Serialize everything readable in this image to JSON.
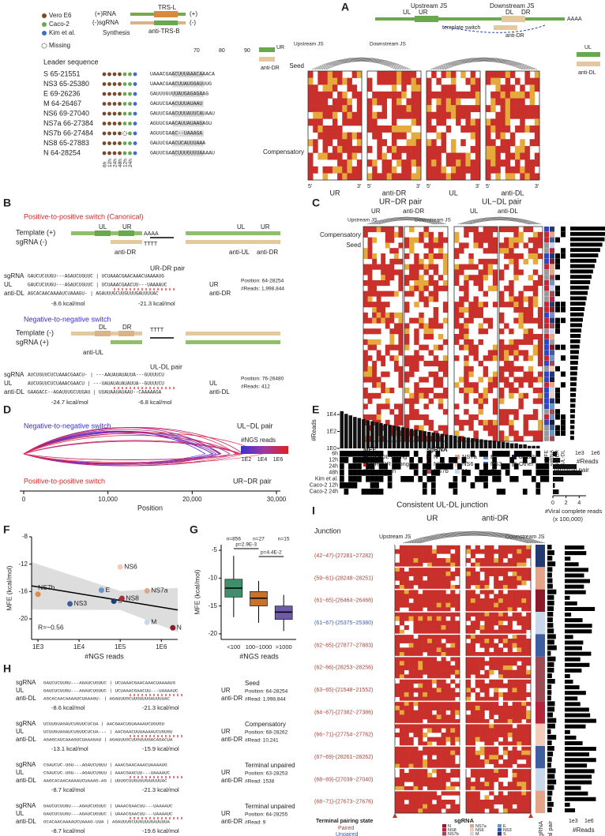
{
  "A": {
    "label": "A",
    "legend": [
      "Vero E6",
      "Caco-2",
      "Kim et al."
    ],
    "missing": "Missing",
    "leader": "Leader sequence",
    "plus_rna": "(+)RNA",
    "minus_sgrna": "(-)sgRNA",
    "synthesis": "Synthesis",
    "trs_l": "TRS-L",
    "anti_trs_b": "anti-TRS-B",
    "plus": "(+)",
    "minus": "(-)",
    "upstream_js": "Upstream JS",
    "downstream_js": "Downstream JS",
    "ul": "UL",
    "ur": "UR",
    "dl": "DL",
    "dr": "DR",
    "aaaa": "AAAA",
    "template_switch": "template switch",
    "anti_dr": "anti-DR",
    "anti_dl": "anti-DL",
    "positions": [
      "70",
      "80",
      "90"
    ],
    "rows": [
      {
        "name": "S 65-21551",
        "seq": "UAAACGAACUUUAAACAAACA"
      },
      {
        "name": "NS3 65-25380",
        "seq": "UAAACGAACUUAUGGAUUUG"
      },
      {
        "name": "E 69-26236",
        "seq": "GAUUUGUUUAUGAGAGAAG"
      },
      {
        "name": "M 64-26467",
        "seq": "GAUUCGAACUUUAUAAU"
      },
      {
        "name": "NS6 69-27040",
        "seq": "GAUUCGAACUUUAUUCAUAAU"
      },
      {
        "name": "NS7a 66-27384",
        "seq": "AGUUCGAACAUUAUAAGAGU"
      },
      {
        "name": "NS7b 66-27484",
        "seq": "AGUUCGAAC--UAAAGA"
      },
      {
        "name": "NS8 65-27883",
        "seq": "GAUUCGAACUCAUUUAAA"
      },
      {
        "name": "N 64-28254",
        "seq": "GAUUCGAACUUUGUUUAAAAU"
      }
    ],
    "timepoints": [
      "6h",
      "12h",
      "24h",
      "48h",
      "12h",
      "24h"
    ],
    "seed": "Seed",
    "compensatory": "Compensatory",
    "heatmaps": [
      "UR",
      "anti-DR",
      "UL",
      "anti-DL"
    ],
    "five": "5'",
    "three": "3'"
  },
  "B": {
    "label": "B",
    "pos_title": "Positive-to-positive switch (Canonical)",
    "template_plus": "Template (+)",
    "sgrna_minus": "sgRNA (-)",
    "neg_title": "Negative-to-negative switch",
    "template_minus": "Template (-)",
    "sgrna_plus": "sgRNA (+)",
    "ul": "UL",
    "ur": "UR",
    "dl": "DL",
    "dr": "DR",
    "anti_dr": "anti-DR",
    "anti_ul": "anti-UL",
    "aaaa": "AAAA",
    "tttt": "TTTT",
    "pair1": {
      "title": "UR-DR pair",
      "names": [
        "sgRNA",
        "UL",
        "anti-DL"
      ],
      "seqs": [
        "GAUCUCUUGU---AGAUCUGUUC | UCUAAACGAACAAACUAAAAUG",
        "GAUCUCUUGU---AGAUCUGUUC | UCUAAACGAACUU---UAAAAUC",
        "AGCACAACAAAAUCUAAAGU- | AGAUUUGCUUGUUUGAUUUUAC"
      ],
      "right": [
        "UR",
        "anti-DR"
      ],
      "mfe": [
        "-8.6 kcal/mol",
        "-21.3 kcal/mol"
      ],
      "position": "Position: 64-28254",
      "reads": "#Reads: 1,998,844"
    },
    "pair2": {
      "title": "UL-DL pair",
      "names": [
        "sgRNA",
        "UL",
        "anti-DL"
      ],
      "seqs": [
        "AUCUGUUCUCUAAACGAACU- | ---AAUAUAUAUUA---GUUUUCU",
        "AUCUGUUCUCUAAACGAACU | ---UAUAUAUAUAUUA--GUUUUCU",
        "GAAGACC--AGAUUUGCUUGAU | UUAUAAUAUAAU--CAAAAAGA"
      ],
      "right": [
        "UL",
        "anti-DL"
      ],
      "mfe": [
        "-24.7 kcal/mol",
        "-6.8 kcal/mol"
      ],
      "position": "Position: 76-26480",
      "reads": "#Reads: 412"
    }
  },
  "C": {
    "label": "C",
    "urdr": "UR−DR pair",
    "uldl": "UL−DL pair",
    "upstream_js": "Upstream JS",
    "downstream_js": "Downstream JS",
    "heatmaps": [
      "UR",
      "anti-DR",
      "UL",
      "anti-DL"
    ],
    "compensatory": "Compensatory",
    "seed": "Seed",
    "mfe_title": "MFE",
    "mfe_legend": [
      {
        "name": "UL−DL strong",
        "color": "#3344cc"
      },
      {
        "name": "UR−DR strong",
        "color": "#cc2233"
      },
      {
        "name": "Uncertain",
        "color": "#999999"
      }
    ],
    "sg_title": "sgRNA",
    "sg_legend": [
      {
        "name": "N",
        "color": "#8b1a2b"
      },
      {
        "name": "NS8",
        "color": "#b3263c"
      },
      {
        "name": "NS7b",
        "color": "#9c4a54"
      },
      {
        "name": "NS7a",
        "color": "#e4a487"
      },
      {
        "name": "NS6",
        "color": "#f2ccb8"
      },
      {
        "name": "M",
        "color": "#c8d8ea"
      },
      {
        "name": "E",
        "color": "#6a95c8"
      },
      {
        "name": "NS3",
        "color": "#3d5f9e"
      },
      {
        "name": "S",
        "color": "#223a70"
      },
      {
        "name": "orf1ab",
        "color": "#1a1a3a"
      },
      {
        "name": "Other",
        "color": "#999999"
      }
    ],
    "cols": [
      "MFE",
      "sgRNA",
      "UR-DR",
      "UL-DL"
    ],
    "reads_ticks": [
      "1e3",
      "1e6"
    ],
    "reads": "#Reads",
    "terminal": "Terminal pair"
  },
  "D": {
    "label": "D",
    "neg": "Negative-to-negative switch",
    "uldl": "UL−DL pair",
    "pos": "Positive-to-positive switch",
    "urdr": "UR−DR pair",
    "legend_title": "#NGS reads",
    "legend_ticks": [
      "1E2",
      "1E4",
      "1E6"
    ],
    "xlabel": "Position",
    "xlim": [
      0,
      30000
    ],
    "xticks": [
      0,
      {
        "value": 10000,
        "label": "10,000"
      },
      {
        "value": 20000,
        "label": "20,000"
      },
      {
        "value": 30000,
        "label": "30,000"
      }
    ]
  },
  "E": {
    "label": "E",
    "reads_label": "#Reads",
    "reads_ticks": [
      {
        "value": 10000,
        "label": "1E4"
      },
      {
        "value": 100,
        "label": "1E2"
      },
      {
        "value": 1,
        "label": "1E0"
      }
    ],
    "reads_lim": [
      1,
      30000
    ],
    "counts": [
      25000,
      12000,
      8000,
      5200,
      3900,
      2800,
      2100,
      1600,
      1250,
      980,
      760,
      600,
      480,
      390,
      310,
      250,
      200,
      165,
      135,
      110,
      90,
      75,
      62,
      52,
      44,
      37,
      31,
      26,
      22,
      19,
      16,
      14,
      12,
      10,
      9,
      8,
      7,
      6,
      5,
      4,
      4,
      3,
      3,
      2,
      2,
      2,
      1,
      1
    ],
    "rows": [
      "6h",
      "12h",
      "24h",
      "48h",
      "Kim et al.",
      "Caco-2 12h",
      "Caco-2 24h"
    ],
    "viral_reads": [
      0.6,
      1.1,
      3.6,
      4.4,
      1.6,
      0.3,
      0.9
    ],
    "xlim": [
      0,
      4.8
    ],
    "xticks": [
      0,
      2,
      4
    ],
    "title": "Consistent UL-DL junction",
    "xlabel": "#Viral complete reads",
    "xlabel2": "(x 100,000)"
  },
  "F": {
    "label": "F",
    "ylabel": "MFE (kcal/mol)",
    "xlabel": "#NGS reads",
    "ylim": [
      -23,
      -8
    ],
    "yticks": [
      -8,
      -12,
      -16,
      -20
    ],
    "xlim": [
      700,
      2500000
    ],
    "xticks": [
      {
        "value": 1000,
        "label": "1E3"
      },
      {
        "value": 10000,
        "label": "1E4"
      },
      {
        "value": 100000,
        "label": "1E5"
      },
      {
        "value": 1000000,
        "label": "1E6"
      }
    ],
    "log_x": true,
    "r": "R=−0.56",
    "points": [
      {
        "name": "NS7b",
        "x": 1000,
        "y": -16.4,
        "color": "#e08a4a"
      },
      {
        "name": "NS3",
        "x": 6000,
        "y": -17.8,
        "color": "#3d5f9e"
      },
      {
        "name": "E",
        "x": 35000,
        "y": -15.8,
        "color": "#6a95c8"
      },
      {
        "name": "S",
        "x": 70000,
        "y": -17.4,
        "color": "#223a70"
      },
      {
        "name": "NS8",
        "x": 110000,
        "y": -17.0,
        "color": "#b3263c"
      },
      {
        "name": "NS6",
        "x": 100000,
        "y": -12.4,
        "color": "#f2ccb8"
      },
      {
        "name": "NS7a",
        "x": 450000,
        "y": -15.9,
        "color": "#e4a487"
      },
      {
        "name": "M",
        "x": 450000,
        "y": -20.5,
        "color": "#c8d8ea"
      },
      {
        "name": "N",
        "x": 1900000,
        "y": -21.3,
        "color": "#8b1a2b"
      }
    ]
  },
  "G": {
    "label": "G",
    "ylabel": "MFE (kcal/mol)",
    "xlabel": "#NGS reads",
    "ylim": [
      -21,
      -4
    ],
    "yticks": [
      -5,
      -10,
      -15,
      -20
    ],
    "p": [
      "p=2.9E-3",
      "p=4.4E-2"
    ],
    "boxes": [
      {
        "category": "<100",
        "n": "n=856",
        "lo": -17,
        "q1": -13.4,
        "median": -11.8,
        "q3": -10.2,
        "hi": -6,
        "color": "#3f8f6c"
      },
      {
        "category": "100~1000",
        "n": "n=27",
        "lo": -18,
        "q1": -15,
        "median": -13.6,
        "q3": -12.4,
        "hi": -10.5,
        "color": "#c8722f"
      },
      {
        "category": ">1000",
        "n": "n=15",
        "lo": -19.5,
        "q1": -17.4,
        "median": -16.1,
        "q3": -15,
        "hi": -13,
        "color": "#6e5aa8"
      }
    ]
  },
  "H": {
    "label": "H",
    "blocks": [
      {
        "names": [
          "sgRNA",
          "UL",
          "anti-DL"
        ],
        "seqs": [
          "GAUCUCUUGU---AGAUCUGUUC | UCUAAACGAACAAACUAAAAUG",
          "GAUCUCUUGU---AGAUCUGUUC | UCUAAACGAACUU---UAAAAUC",
          "AGCACAACAAAAUCUAAAGU- | AGAUUUGCUUGUUUGAUUUUAC"
        ],
        "right": [
          "UR",
          "anti-DR"
        ],
        "mfe": [
          "-8.6 kcal/mol",
          "-21.3 kcal/mol"
        ],
        "title": "Seed",
        "position": "Position: 64-28254",
        "reads": "#Read: 1,998,844"
      },
      {
        "names": [
          "sgRNA",
          "UL",
          "anti-DL"
        ],
        "seqs": [
          "UCUUGUAGAUCUGUUCUCUA | AACGAACUUUAAAAUCUGUGU",
          "UCUUGUAGAUCUGUUCUCUA--- | AACGAACUUUAAAAUCUGUGU",
          "AGAGCAUCAAAGUCUAAAGAU | AGAUUUGCUUGUUUGACAGACUA"
        ],
        "right": [
          "UR",
          "anti-DR"
        ],
        "mfe": [
          "-13.1 kcal/mol",
          "-15.9 kcal/mol"
        ],
        "title": "Compensatory",
        "position": "Position: 68-28262",
        "reads": "#Read: 10,241"
      },
      {
        "names": [
          "sgRNA",
          "UL",
          "anti-DL"
        ],
        "seqs": [
          "CGAUCUC-UGU---AGAUCUGUU | AAACGAACAAACUAAAAUG",
          "CGAUCUC-UGU---AGAUCUGUU | AAACGAACUU---UAAAAUC",
          "AAGCACAACAAAAUCUAAAG-AG | UUUGCUUGUUUGAUUUUAC"
        ],
        "right": [
          "UR",
          "anti-DR"
        ],
        "mfe": [
          "-8.7 kcal/mol",
          "-21.3 kcal/mol"
        ],
        "title": "Terminal unpaired",
        "position": "Position: 63-28253",
        "reads": "#Read: 1538"
      },
      {
        "names": [
          "sgRNA",
          "UL",
          "anti-DL"
        ],
        "seqs": [
          "GAUCUCUUGU---AGAUCUGUUC | UAAACGAACUU---UAAAAUC",
          "GAUCUCUUGU---AGAUCUGUUC | UAAACGAACUU---UAAAAUC",
          "GCACAACAAAAUCUAAAG-UUA | AGAUUUGCUUGUUUGAUUUUA"
        ],
        "right": [
          "UR",
          "anti-DR"
        ],
        "mfe": [
          "-8.7 kcal/mol",
          "-19.6 kcal/mol"
        ],
        "title": "Terminal unpaired",
        "position": "Position: 64-28255",
        "reads": "#Read: 9"
      }
    ]
  },
  "I": {
    "label": "I",
    "junction": "Junction",
    "upstream_js": "Upstream JS",
    "downstream_js": "Downstream JS",
    "heatmaps": [
      "UR",
      "anti-DR"
    ],
    "junctions": [
      {
        "label": "(42~47)-(27281~27282)",
        "paired": true
      },
      {
        "label": "(59~61)-(28248~28251)",
        "paired": true
      },
      {
        "label": "(61~65)-(26464~26468)",
        "paired": true
      },
      {
        "label": "(61~67)-(25375~25380)",
        "paired": false
      },
      {
        "label": "(62~65)-(27877~27883)",
        "paired": true
      },
      {
        "label": "(62~66)-(28253~28256)",
        "paired": true
      },
      {
        "label": "(63~65)-(21548~21552)",
        "paired": true
      },
      {
        "label": "(64~67)-(27382~27386)",
        "paired": true
      },
      {
        "label": "(66~71)-(27754~27762)",
        "paired": true
      },
      {
        "label": "(67~69)-(28261~28262)",
        "paired": true
      },
      {
        "label": "(68~69)-(27039~27040)",
        "paired": true
      },
      {
        "label": "(68~71)-(27673~27676)",
        "paired": true
      }
    ],
    "state_title": "Terminal pairing state",
    "paired": "Paired",
    "unpaired": "Unpaired",
    "paired_color": "#c0392b",
    "unpaired_color": "#2f5fb3",
    "sg_title": "sgRNA",
    "sg_legend": [
      {
        "name": "N",
        "color": "#8b1a2b"
      },
      {
        "name": "NS8",
        "color": "#b3263c"
      },
      {
        "name": "NS7b",
        "color": "#9c4a54"
      },
      {
        "name": "NS7a",
        "color": "#e4a487"
      },
      {
        "name": "NS6",
        "color": "#f2ccb8"
      },
      {
        "name": "M",
        "color": "#c8d8ea"
      },
      {
        "name": "E",
        "color": "#6a95c8"
      },
      {
        "name": "NS3",
        "color": "#3d5f9e"
      },
      {
        "name": "S",
        "color": "#223a70"
      }
    ],
    "cols": [
      "sgRNA",
      "Terminal pair"
    ],
    "reads_ticks": [
      "1e3",
      "1e6"
    ],
    "reads": "#Reads"
  }
}
